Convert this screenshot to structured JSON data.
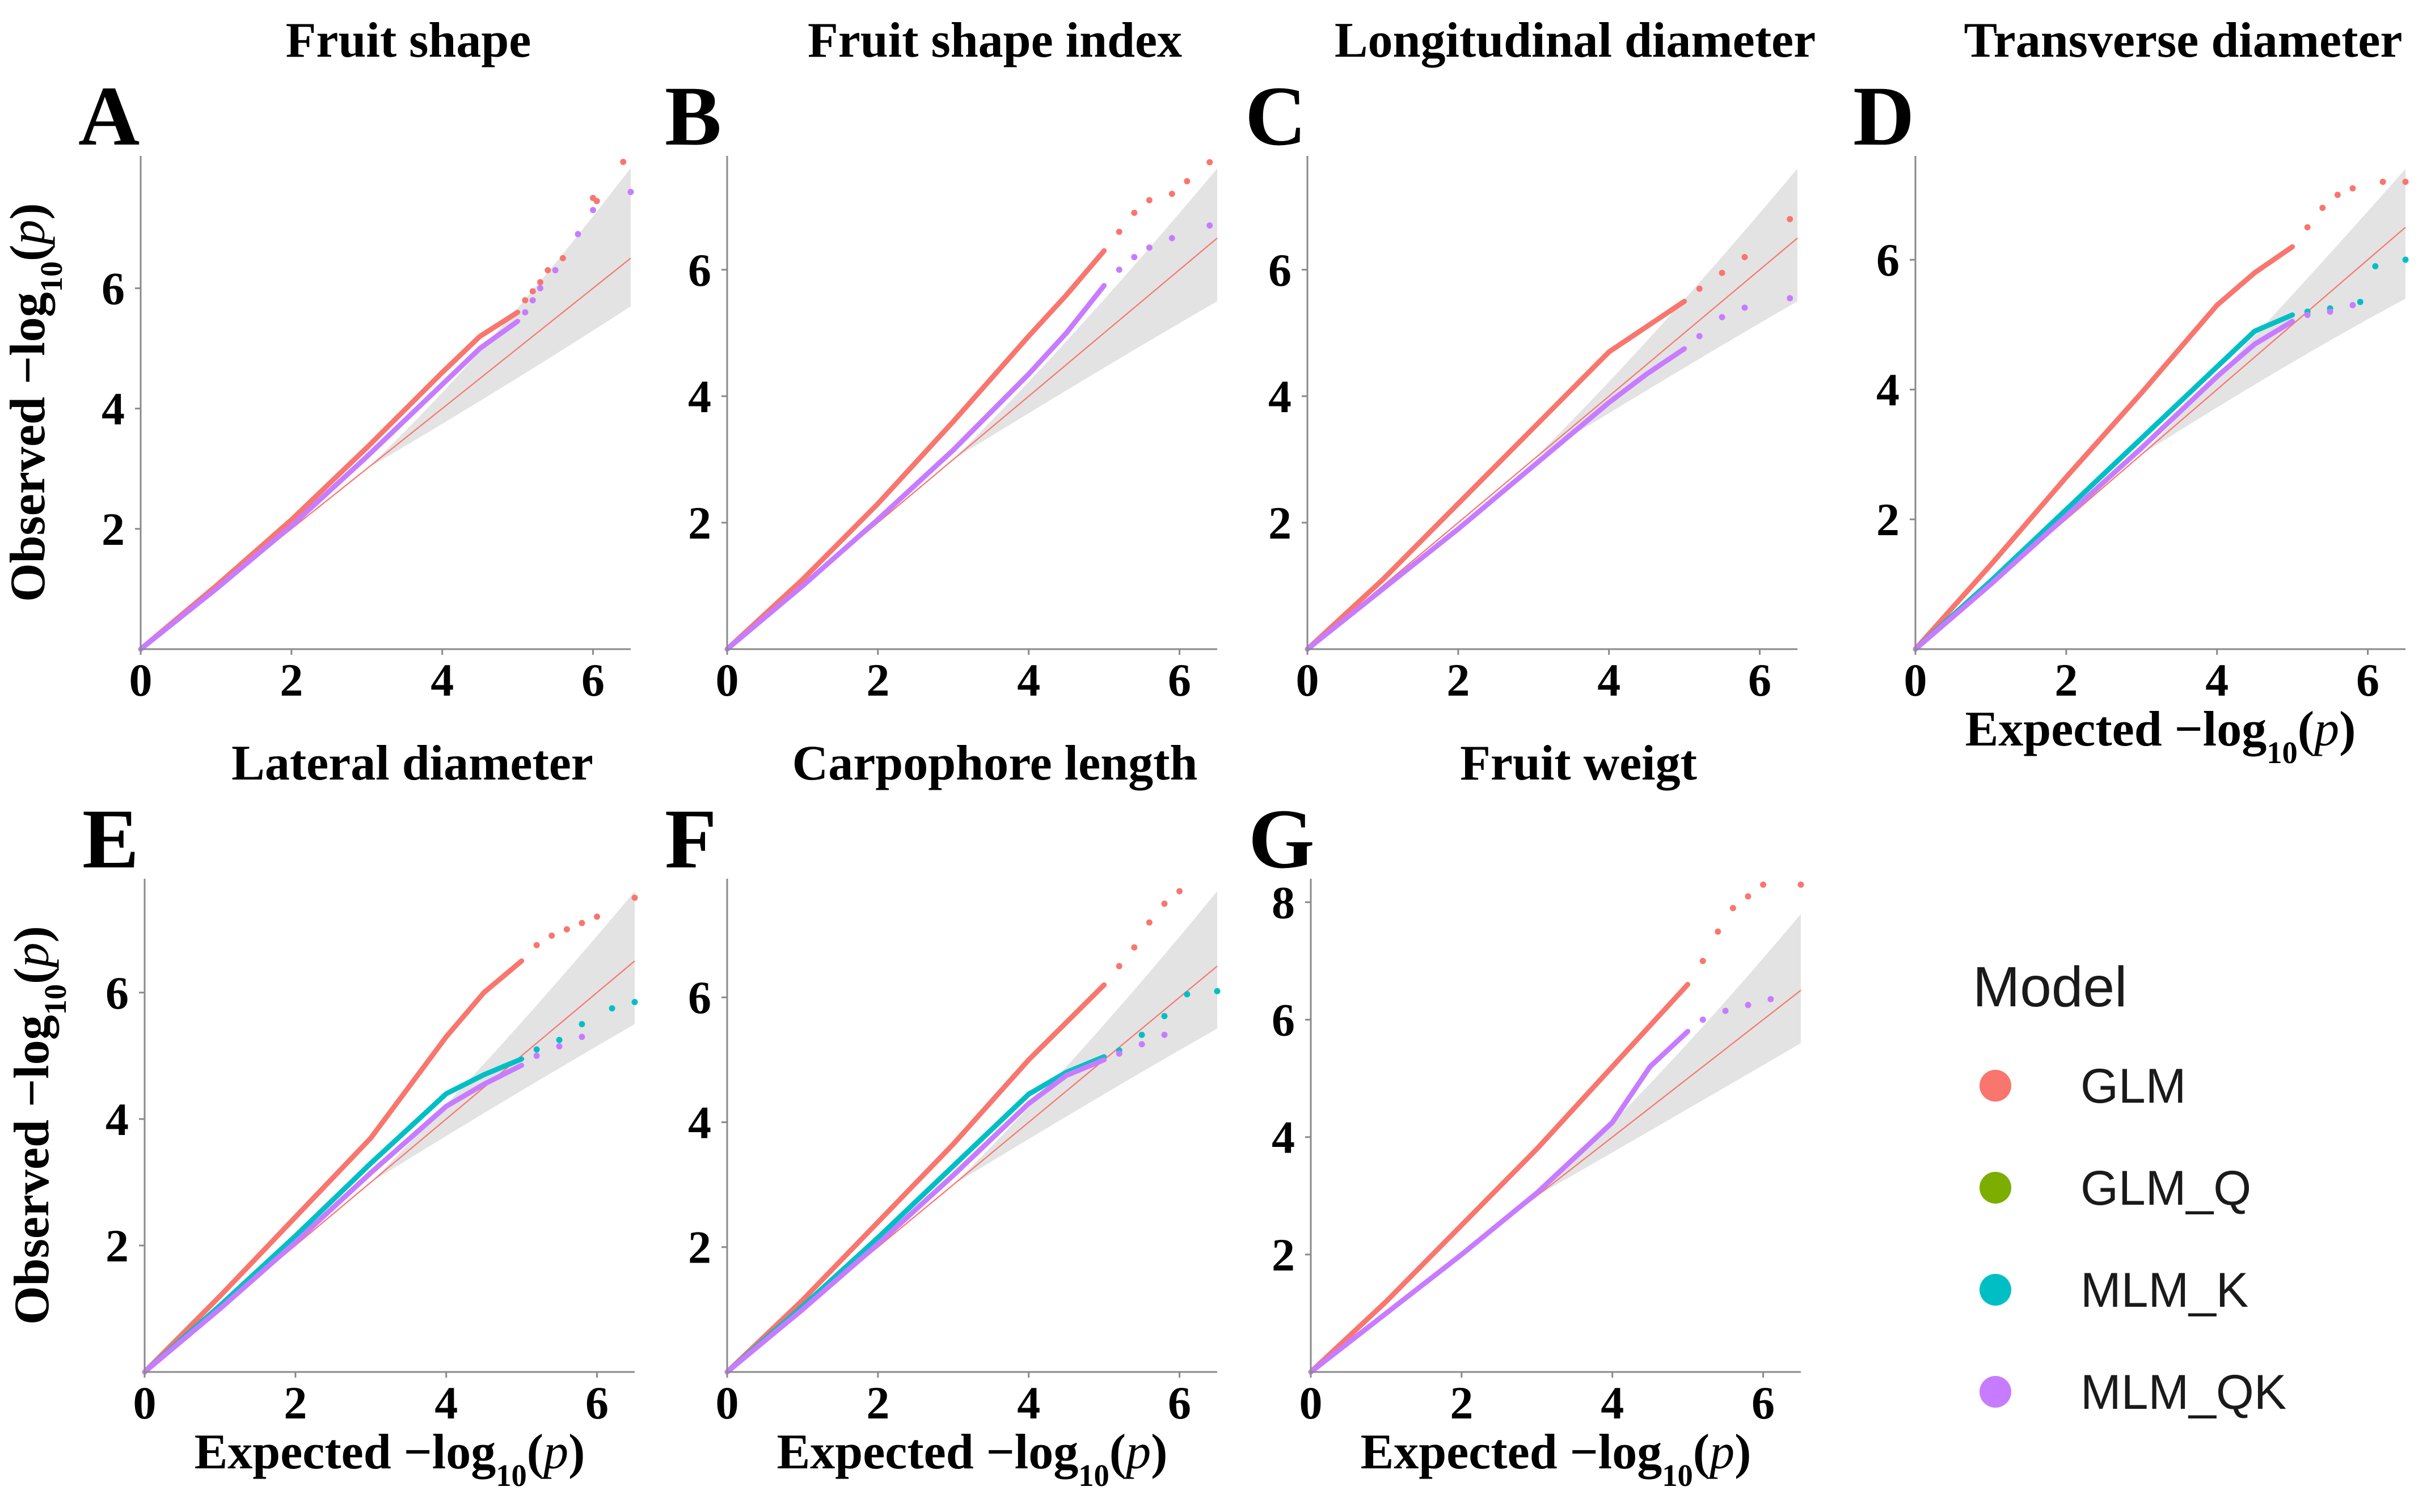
{
  "axis_text": {
    "x_prefix": "Expected −log",
    "y_prefix": "Observed −log",
    "subscript": "10",
    "suffix_open": "(",
    "var": "p",
    "suffix_close": ")"
  },
  "legend": {
    "title": "Model",
    "items": [
      {
        "label": "GLM",
        "color": "#F8766D"
      },
      {
        "label": "GLM_Q",
        "color": "#7CAE00"
      },
      {
        "label": "MLM_K",
        "color": "#00BFC4"
      },
      {
        "label": "MLM_QK",
        "color": "#C77CFF"
      }
    ]
  },
  "colors": {
    "confidence_band": "#e3e3e3",
    "expected_line": "#F8766D",
    "axis": "#8a8a8a"
  },
  "chart_data": [
    {
      "letter": "A",
      "title": "Fruit shape",
      "type": "scatter",
      "xlim": [
        0,
        6.5
      ],
      "ylim": [
        0,
        8.2
      ],
      "xticks": [
        "0",
        "2",
        "4",
        "6"
      ],
      "yticks": [
        "2",
        "4",
        "6"
      ],
      "show_ylabel": true,
      "show_xlabel": false,
      "band_upper_end": 8.0,
      "band_lower_end": 5.7,
      "series": [
        {
          "name": "GLM",
          "points": [
            [
              0,
              0
            ],
            [
              1,
              1.05
            ],
            [
              2,
              2.15
            ],
            [
              3,
              3.35
            ],
            [
              4,
              4.6
            ],
            [
              4.5,
              5.2
            ],
            [
              5,
              5.6
            ]
          ],
          "tail": [
            [
              5.1,
              5.8
            ],
            [
              5.2,
              5.95
            ],
            [
              5.3,
              6.1
            ],
            [
              5.4,
              6.3
            ],
            [
              5.6,
              6.5
            ],
            [
              6,
              7.5
            ],
            [
              6.05,
              7.45
            ],
            [
              6.4,
              8.1
            ]
          ]
        },
        {
          "name": "MLM_QK",
          "points": [
            [
              0,
              0
            ],
            [
              1,
              1.0
            ],
            [
              2,
              2.05
            ],
            [
              3,
              3.2
            ],
            [
              4,
              4.4
            ],
            [
              4.5,
              5.0
            ],
            [
              5,
              5.45
            ]
          ],
          "tail": [
            [
              5.1,
              5.6
            ],
            [
              5.2,
              5.8
            ],
            [
              5.3,
              6.0
            ],
            [
              5.5,
              6.3
            ],
            [
              5.8,
              6.9
            ],
            [
              6,
              7.3
            ],
            [
              6.5,
              7.6
            ]
          ]
        }
      ]
    },
    {
      "letter": "B",
      "title": "Fruit shape index",
      "type": "scatter",
      "xlim": [
        0,
        6.5
      ],
      "ylim": [
        0,
        7.8
      ],
      "xticks": [
        "0",
        "2",
        "4",
        "6"
      ],
      "yticks": [
        "2",
        "4",
        "6"
      ],
      "show_ylabel": false,
      "show_xlabel": false,
      "band_upper_end": 7.6,
      "band_lower_end": 5.5,
      "series": [
        {
          "name": "GLM",
          "points": [
            [
              0,
              0
            ],
            [
              1,
              1.1
            ],
            [
              2,
              2.3
            ],
            [
              3,
              3.6
            ],
            [
              4,
              4.95
            ],
            [
              4.5,
              5.6
            ],
            [
              5,
              6.3
            ]
          ],
          "tail": [
            [
              5.2,
              6.6
            ],
            [
              5.4,
              6.9
            ],
            [
              5.6,
              7.1
            ],
            [
              5.9,
              7.2
            ],
            [
              6.1,
              7.4
            ],
            [
              6.4,
              7.7
            ]
          ]
        },
        {
          "name": "MLM_QK",
          "points": [
            [
              0,
              0
            ],
            [
              1,
              1.0
            ],
            [
              2,
              2.05
            ],
            [
              3,
              3.15
            ],
            [
              4,
              4.35
            ],
            [
              4.5,
              5.0
            ],
            [
              5,
              5.75
            ]
          ],
          "tail": [
            [
              5.2,
              6.0
            ],
            [
              5.4,
              6.2
            ],
            [
              5.6,
              6.35
            ],
            [
              5.9,
              6.5
            ],
            [
              6.4,
              6.7
            ]
          ]
        }
      ]
    },
    {
      "letter": "C",
      "title": "Longitudinal diameter",
      "type": "scatter",
      "xlim": [
        0,
        6.5
      ],
      "ylim": [
        0,
        7.8
      ],
      "xticks": [
        "0",
        "2",
        "4",
        "6"
      ],
      "yticks": [
        "2",
        "4",
        "6"
      ],
      "show_ylabel": false,
      "show_xlabel": false,
      "band_upper_end": 7.6,
      "band_lower_end": 5.5,
      "series": [
        {
          "name": "GLM",
          "points": [
            [
              0,
              0
            ],
            [
              1,
              1.1
            ],
            [
              2,
              2.3
            ],
            [
              3,
              3.5
            ],
            [
              4,
              4.7
            ],
            [
              4.5,
              5.1
            ],
            [
              5,
              5.5
            ]
          ],
          "tail": [
            [
              5.2,
              5.7
            ],
            [
              5.5,
              5.95
            ],
            [
              5.8,
              6.2
            ],
            [
              6.4,
              6.8
            ]
          ]
        },
        {
          "name": "MLM_QK",
          "points": [
            [
              0,
              0
            ],
            [
              1,
              0.95
            ],
            [
              2,
              1.9
            ],
            [
              3,
              2.9
            ],
            [
              4,
              3.9
            ],
            [
              4.5,
              4.35
            ],
            [
              5,
              4.75
            ]
          ],
          "tail": [
            [
              5.2,
              4.95
            ],
            [
              5.5,
              5.25
            ],
            [
              5.8,
              5.4
            ],
            [
              6.4,
              5.55
            ]
          ]
        }
      ]
    },
    {
      "letter": "D",
      "title": "Transverse diameter",
      "type": "scatter",
      "xlim": [
        0,
        6.5
      ],
      "ylim": [
        0,
        7.6
      ],
      "xticks": [
        "0",
        "2",
        "4",
        "6"
      ],
      "yticks": [
        "2",
        "4",
        "6"
      ],
      "show_ylabel": false,
      "show_xlabel": true,
      "band_upper_end": 7.4,
      "band_lower_end": 5.4,
      "series": [
        {
          "name": "GLM",
          "points": [
            [
              0,
              0
            ],
            [
              1,
              1.3
            ],
            [
              2,
              2.65
            ],
            [
              3,
              3.95
            ],
            [
              4,
              5.3
            ],
            [
              4.5,
              5.8
            ],
            [
              5,
              6.2
            ]
          ],
          "tail": [
            [
              5.2,
              6.5
            ],
            [
              5.4,
              6.8
            ],
            [
              5.6,
              7.0
            ],
            [
              5.8,
              7.1
            ],
            [
              6.2,
              7.2
            ],
            [
              6.5,
              7.2
            ]
          ]
        },
        {
          "name": "MLM_K",
          "points": [
            [
              0,
              0
            ],
            [
              1,
              1.05
            ],
            [
              2,
              2.15
            ],
            [
              3,
              3.25
            ],
            [
              4,
              4.35
            ],
            [
              4.5,
              4.9
            ],
            [
              5,
              5.15
            ]
          ],
          "tail": [
            [
              5.2,
              5.2
            ],
            [
              5.5,
              5.25
            ],
            [
              5.9,
              5.35
            ],
            [
              6.1,
              5.9
            ],
            [
              6.5,
              6.0
            ]
          ]
        },
        {
          "name": "MLM_QK",
          "points": [
            [
              0,
              0
            ],
            [
              1,
              1.0
            ],
            [
              2,
              2.05
            ],
            [
              3,
              3.1
            ],
            [
              4,
              4.2
            ],
            [
              4.5,
              4.7
            ],
            [
              5,
              5.05
            ]
          ],
          "tail": [
            [
              5.2,
              5.15
            ],
            [
              5.5,
              5.2
            ],
            [
              5.8,
              5.3
            ]
          ]
        }
      ]
    },
    {
      "letter": "E",
      "title": "Lateral diameter",
      "type": "scatter",
      "xlim": [
        0,
        6.5
      ],
      "ylim": [
        0,
        7.8
      ],
      "xticks": [
        "0",
        "2",
        "4",
        "6"
      ],
      "yticks": [
        "2",
        "4",
        "6"
      ],
      "show_ylabel": true,
      "show_xlabel": true,
      "band_upper_end": 7.6,
      "band_lower_end": 5.5,
      "series": [
        {
          "name": "GLM",
          "points": [
            [
              0,
              0
            ],
            [
              1,
              1.2
            ],
            [
              2,
              2.45
            ],
            [
              3,
              3.7
            ],
            [
              4,
              5.3
            ],
            [
              4.5,
              6.0
            ],
            [
              5,
              6.5
            ]
          ],
          "tail": [
            [
              5.2,
              6.75
            ],
            [
              5.4,
              6.9
            ],
            [
              5.6,
              7.0
            ],
            [
              5.8,
              7.1
            ],
            [
              6,
              7.2
            ],
            [
              6.5,
              7.5
            ]
          ]
        },
        {
          "name": "MLM_K",
          "points": [
            [
              0,
              0
            ],
            [
              1,
              1.05
            ],
            [
              2,
              2.15
            ],
            [
              3,
              3.3
            ],
            [
              4,
              4.4
            ],
            [
              4.5,
              4.7
            ],
            [
              5,
              4.95
            ]
          ],
          "tail": [
            [
              5.2,
              5.1
            ],
            [
              5.5,
              5.25
            ],
            [
              5.8,
              5.5
            ],
            [
              6.2,
              5.75
            ],
            [
              6.5,
              5.85
            ]
          ]
        },
        {
          "name": "MLM_QK",
          "points": [
            [
              0,
              0
            ],
            [
              1,
              1.0
            ],
            [
              2,
              2.05
            ],
            [
              3,
              3.15
            ],
            [
              4,
              4.2
            ],
            [
              4.5,
              4.55
            ],
            [
              5,
              4.85
            ]
          ],
          "tail": [
            [
              5.2,
              5.0
            ],
            [
              5.5,
              5.15
            ],
            [
              5.8,
              5.3
            ]
          ]
        }
      ]
    },
    {
      "letter": "F",
      "title": "Carpophore length",
      "type": "scatter",
      "xlim": [
        0,
        6.5
      ],
      "ylim": [
        0,
        7.9
      ],
      "xticks": [
        "0",
        "2",
        "4",
        "6"
      ],
      "yticks": [
        "2",
        "4",
        "6"
      ],
      "show_ylabel": false,
      "show_xlabel": true,
      "band_upper_end": 7.7,
      "band_lower_end": 5.5,
      "series": [
        {
          "name": "GLM",
          "points": [
            [
              0,
              0
            ],
            [
              1,
              1.15
            ],
            [
              2,
              2.4
            ],
            [
              3,
              3.65
            ],
            [
              4,
              5.0
            ],
            [
              4.5,
              5.6
            ],
            [
              5,
              6.2
            ]
          ],
          "tail": [
            [
              5.2,
              6.5
            ],
            [
              5.4,
              6.8
            ],
            [
              5.6,
              7.2
            ],
            [
              5.8,
              7.5
            ],
            [
              6,
              7.7
            ]
          ]
        },
        {
          "name": "MLM_K",
          "points": [
            [
              0,
              0
            ],
            [
              1,
              1.05
            ],
            [
              2,
              2.15
            ],
            [
              3,
              3.3
            ],
            [
              4,
              4.45
            ],
            [
              4.5,
              4.8
            ],
            [
              5,
              5.05
            ]
          ],
          "tail": [
            [
              5.2,
              5.15
            ],
            [
              5.5,
              5.4
            ],
            [
              5.8,
              5.7
            ],
            [
              6.1,
              6.05
            ],
            [
              6.5,
              6.1
            ]
          ]
        },
        {
          "name": "MLM_QK",
          "points": [
            [
              0,
              0
            ],
            [
              1,
              1.0
            ],
            [
              2,
              2.05
            ],
            [
              3,
              3.15
            ],
            [
              4,
              4.3
            ],
            [
              4.5,
              4.75
            ],
            [
              5,
              5.0
            ]
          ],
          "tail": [
            [
              5.2,
              5.1
            ],
            [
              5.5,
              5.25
            ],
            [
              5.8,
              5.4
            ]
          ]
        }
      ]
    },
    {
      "letter": "G",
      "title": "Fruit weigt",
      "type": "scatter",
      "xlim": [
        0,
        6.5
      ],
      "ylim": [
        0,
        8.4
      ],
      "xticks": [
        "0",
        "2",
        "4",
        "6"
      ],
      "yticks": [
        "2",
        "4",
        "6",
        "8"
      ],
      "show_ylabel": false,
      "show_xlabel": true,
      "band_upper_end": 7.8,
      "band_lower_end": 5.6,
      "series": [
        {
          "name": "GLM",
          "points": [
            [
              0,
              0
            ],
            [
              1,
              1.2
            ],
            [
              2,
              2.5
            ],
            [
              3,
              3.8
            ],
            [
              4,
              5.2
            ],
            [
              4.5,
              5.9
            ],
            [
              5,
              6.6
            ]
          ],
          "tail": [
            [
              5.2,
              7.0
            ],
            [
              5.4,
              7.5
            ],
            [
              5.6,
              7.9
            ],
            [
              5.8,
              8.1
            ],
            [
              6,
              8.3
            ],
            [
              6.5,
              8.3
            ]
          ]
        },
        {
          "name": "MLM_QK",
          "points": [
            [
              0,
              0
            ],
            [
              1,
              1.0
            ],
            [
              2,
              2.0
            ],
            [
              3,
              3.05
            ],
            [
              4,
              4.25
            ],
            [
              4.5,
              5.2
            ],
            [
              5,
              5.8
            ]
          ],
          "tail": [
            [
              5.2,
              6.0
            ],
            [
              5.5,
              6.15
            ],
            [
              5.8,
              6.25
            ],
            [
              6.1,
              6.35
            ]
          ]
        }
      ]
    }
  ]
}
